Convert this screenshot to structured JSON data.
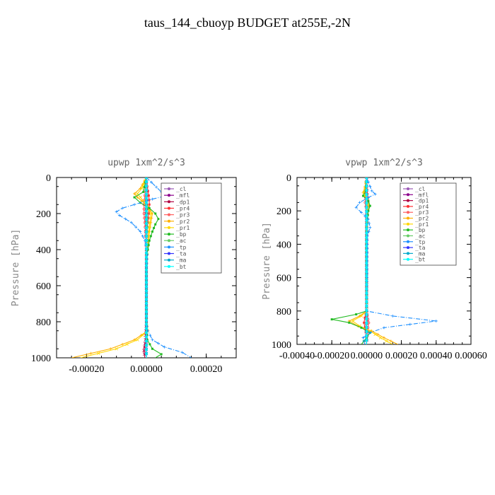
{
  "page": {
    "title": "taus_144_cbuoyp  BUDGET at255E,-2N"
  },
  "chart_data": [
    {
      "type": "line",
      "title": "upwp   1xm^2/s^3",
      "ylabel": "Pressure [hPa]",
      "xlabel": "",
      "ylim": [
        1000,
        0
      ],
      "xlim": [
        -0.0003,
        0.0003
      ],
      "yticks": [
        0,
        200,
        400,
        600,
        800,
        1000
      ],
      "xticks": [
        "-0.00020",
        "0.00000",
        "0.00020"
      ],
      "xtick_values": [
        -0.0002,
        0.0,
        0.0002
      ],
      "legend": [
        "_cl",
        "_mfl",
        "_dp1",
        "_pr4",
        "_pr3",
        "_pr2",
        "_pr1",
        "_bp",
        "_ac",
        "_tp",
        "_ta",
        "_ma",
        "_bt"
      ],
      "legend_position": "top-right",
      "series": [
        {
          "name": "_cl",
          "color": "#9b59b6",
          "y": [
            0,
            100,
            200,
            300,
            400,
            500,
            600,
            700,
            800,
            900,
            1000
          ],
          "x": [
            0,
            0,
            0,
            0,
            0,
            0,
            0,
            0,
            0,
            0,
            0
          ]
        },
        {
          "name": "_mfl",
          "color": "#8b008b",
          "y": [
            0,
            100,
            200,
            300,
            400,
            500,
            600,
            700,
            800,
            900,
            1000
          ],
          "x": [
            0,
            0,
            0,
            0,
            0,
            0,
            0,
            0,
            0,
            0,
            0
          ]
        },
        {
          "name": "_dp1",
          "color": "#b00040",
          "y": [
            0,
            100,
            200,
            300,
            400,
            500,
            600,
            700,
            800,
            900,
            960,
            1000
          ],
          "x": [
            0,
            0,
            -2e-06,
            -2e-06,
            0,
            0,
            0,
            0,
            0,
            -3e-06,
            -8e-06,
            -5e-06
          ]
        },
        {
          "name": "_pr4",
          "color": "#ff3030",
          "y": [
            0,
            50,
            100,
            150,
            200,
            250,
            300,
            400,
            500,
            800,
            1000
          ],
          "x": [
            0,
            3e-06,
            8e-06,
            1e-05,
            8e-06,
            5e-06,
            2e-06,
            0,
            0,
            0,
            0
          ]
        },
        {
          "name": "_pr3",
          "color": "#ff6060",
          "y": [
            0,
            100,
            150,
            200,
            250,
            300,
            400,
            500,
            1000
          ],
          "x": [
            0,
            -5e-06,
            -8e-06,
            -8e-06,
            -5e-06,
            -3e-06,
            0,
            0,
            0
          ]
        },
        {
          "name": "_pr2",
          "color": "#ffb000",
          "y": [
            0,
            60,
            90,
            110,
            130,
            160,
            200,
            300,
            400,
            500,
            800,
            850,
            900,
            950,
            1000
          ],
          "x": [
            0,
            -2e-05,
            -4e-05,
            -3e-05,
            -1.5e-05,
            5e-06,
            2e-05,
            1e-05,
            3e-06,
            0,
            0,
            5e-06,
            -4e-05,
            -0.00012,
            -0.00025
          ]
        },
        {
          "name": "_pr1",
          "color": "#ffd700",
          "y": [
            0,
            60,
            90,
            110,
            130,
            160,
            200,
            300,
            400,
            500,
            800,
            850,
            900,
            950,
            1000
          ],
          "x": [
            0,
            -1.5e-05,
            -3e-05,
            -2e-05,
            -1e-05,
            3e-06,
            1.5e-05,
            8e-06,
            2e-06,
            0,
            0,
            4e-06,
            -3e-05,
            -0.0001,
            -0.00022
          ]
        },
        {
          "name": "_bp",
          "color": "#22bb22",
          "y": [
            0,
            80,
            110,
            140,
            170,
            200,
            230,
            260,
            300,
            350,
            400,
            450,
            500,
            800,
            900,
            950,
            980,
            1000
          ],
          "x": [
            0,
            -1e-05,
            -4e-05,
            -2e-05,
            1e-05,
            3e-05,
            4e-05,
            3e-05,
            2e-05,
            1e-05,
            5e-06,
            0,
            0,
            0,
            3e-06,
            2e-05,
            5e-05,
            3e-05
          ]
        },
        {
          "name": "_ac",
          "color": "#66cc66",
          "y": [
            0,
            100,
            200,
            300,
            400,
            1000
          ],
          "x": [
            0,
            0,
            2e-06,
            2e-06,
            0,
            0
          ]
        },
        {
          "name": "_tp",
          "color": "#1e90ff",
          "y": [
            0,
            80,
            100,
            120,
            150,
            170,
            190,
            210,
            250,
            300,
            350,
            400,
            430,
            500,
            800,
            850,
            900,
            940,
            970,
            1000
          ],
          "x": [
            0,
            5e-05,
            7e-05,
            2e-05,
            -4e-05,
            -8e-05,
            -0.0001,
            -9e-05,
            -5e-05,
            -2e-05,
            -5e-06,
            0,
            3e-06,
            0,
            0,
            5e-06,
            2e-05,
            6e-05,
            0.00012,
            0.00015
          ]
        },
        {
          "name": "_ta",
          "color": "#3333ff",
          "y": [
            0,
            1000
          ],
          "x": [
            0,
            0
          ]
        },
        {
          "name": "_ma",
          "color": "#00aacc",
          "y": [
            0,
            1000
          ],
          "x": [
            0,
            0
          ]
        },
        {
          "name": "_bt",
          "color": "#00ffff",
          "y": [
            0,
            1000
          ],
          "x": [
            0,
            0
          ]
        }
      ]
    },
    {
      "type": "line",
      "title": "vpwp   1xm^2/s^3",
      "ylabel": "Pressure [hPa]",
      "xlabel": "",
      "ylim": [
        1000,
        0
      ],
      "xlim": [
        -0.0004,
        0.0006
      ],
      "yticks": [
        0,
        200,
        400,
        600,
        800,
        1000
      ],
      "xticks": [
        "-0.00040",
        "-0.00020",
        "0.00000",
        "0.00020",
        "0.00040",
        "0.00060"
      ],
      "xtick_values": [
        -0.0004,
        -0.0002,
        0.0,
        0.0002,
        0.0004,
        0.0006
      ],
      "legend": [
        "_cl",
        "_mfl",
        "_dp1",
        "_pr4",
        "_pr3",
        "_pr2",
        "_pr1",
        "_bp",
        "_ac",
        "_tp",
        "_ta",
        "_ma",
        "_bt"
      ],
      "legend_position": "top-right",
      "series": [
        {
          "name": "_cl",
          "color": "#9b59b6",
          "y": [
            0,
            200,
            400,
            600,
            800,
            1000
          ],
          "x": [
            0,
            0,
            0,
            0,
            0,
            0
          ]
        },
        {
          "name": "_mfl",
          "color": "#8b008b",
          "y": [
            0,
            200,
            400,
            600,
            800,
            1000
          ],
          "x": [
            0,
            0,
            0,
            0,
            0,
            0
          ]
        },
        {
          "name": "_dp1",
          "color": "#b00040",
          "y": [
            0,
            800,
            850,
            900,
            950,
            1000
          ],
          "x": [
            0,
            0,
            5e-06,
            -5e-06,
            0,
            0
          ]
        },
        {
          "name": "_pr4",
          "color": "#ff3030",
          "y": [
            0,
            100,
            150,
            200,
            250,
            300,
            800,
            840,
            870,
            900,
            950,
            1000
          ],
          "x": [
            0,
            5e-06,
            1e-05,
            5e-06,
            0,
            0,
            0,
            -1e-05,
            -1.5e-05,
            -1e-05,
            0,
            0
          ]
        },
        {
          "name": "_pr3",
          "color": "#ff6060",
          "y": [
            0,
            100,
            150,
            200,
            800,
            850,
            870,
            900,
            1000
          ],
          "x": [
            0,
            -5e-06,
            -8e-06,
            0,
            0,
            8e-06,
            1.2e-05,
            8e-06,
            0
          ]
        },
        {
          "name": "_pr2",
          "color": "#ffb000",
          "y": [
            0,
            60,
            90,
            110,
            130,
            160,
            200,
            300,
            800,
            830,
            860,
            890,
            920,
            960,
            1000
          ],
          "x": [
            0,
            -1e-05,
            -2e-05,
            -1e-05,
            5e-06,
            1e-05,
            5e-06,
            0,
            0,
            -4e-05,
            -0.0001,
            -5e-05,
            3e-05,
            0.0001,
            0.00018
          ]
        },
        {
          "name": "_pr1",
          "color": "#ffd700",
          "y": [
            0,
            60,
            90,
            110,
            130,
            160,
            200,
            300,
            800,
            830,
            860,
            890,
            920,
            960,
            1000
          ],
          "x": [
            0,
            -8e-06,
            -1.5e-05,
            -8e-06,
            4e-06,
            8e-06,
            4e-06,
            0,
            0,
            -3e-05,
            -8e-05,
            -4e-05,
            2e-05,
            8e-05,
            0.00015
          ]
        },
        {
          "name": "_bp",
          "color": "#22bb22",
          "y": [
            0,
            80,
            110,
            140,
            170,
            200,
            250,
            300,
            800,
            820,
            850,
            870,
            900,
            930,
            960,
            1000
          ],
          "x": [
            0,
            -5e-06,
            -2e-05,
            1e-05,
            2e-05,
            1e-05,
            5e-06,
            0,
            0,
            -6e-05,
            -0.0002,
            -0.0001,
            -3e-05,
            2e-05,
            0,
            -3e-05
          ]
        },
        {
          "name": "_ac",
          "color": "#66cc66",
          "y": [
            0,
            200,
            400,
            1000
          ],
          "x": [
            0,
            0,
            0,
            0
          ]
        },
        {
          "name": "_tp",
          "color": "#1e90ff",
          "y": [
            0,
            80,
            100,
            120,
            150,
            180,
            210,
            250,
            300,
            350,
            800,
            830,
            860,
            880,
            900,
            930,
            960,
            1000
          ],
          "x": [
            0,
            3e-05,
            5e-05,
            1e-05,
            -4e-05,
            -6e-05,
            -3e-05,
            1e-05,
            2e-05,
            5e-06,
            0,
            0.00015,
            0.0004,
            0.00025,
            0.0001,
            2e-05,
            -2e-05,
            -1e-05
          ]
        },
        {
          "name": "_ta",
          "color": "#3333ff",
          "y": [
            0,
            1000
          ],
          "x": [
            0,
            0
          ]
        },
        {
          "name": "_ma",
          "color": "#00aacc",
          "y": [
            0,
            1000
          ],
          "x": [
            0,
            0
          ]
        },
        {
          "name": "_bt",
          "color": "#00ffff",
          "y": [
            0,
            1000
          ],
          "x": [
            0,
            0
          ]
        }
      ]
    }
  ]
}
